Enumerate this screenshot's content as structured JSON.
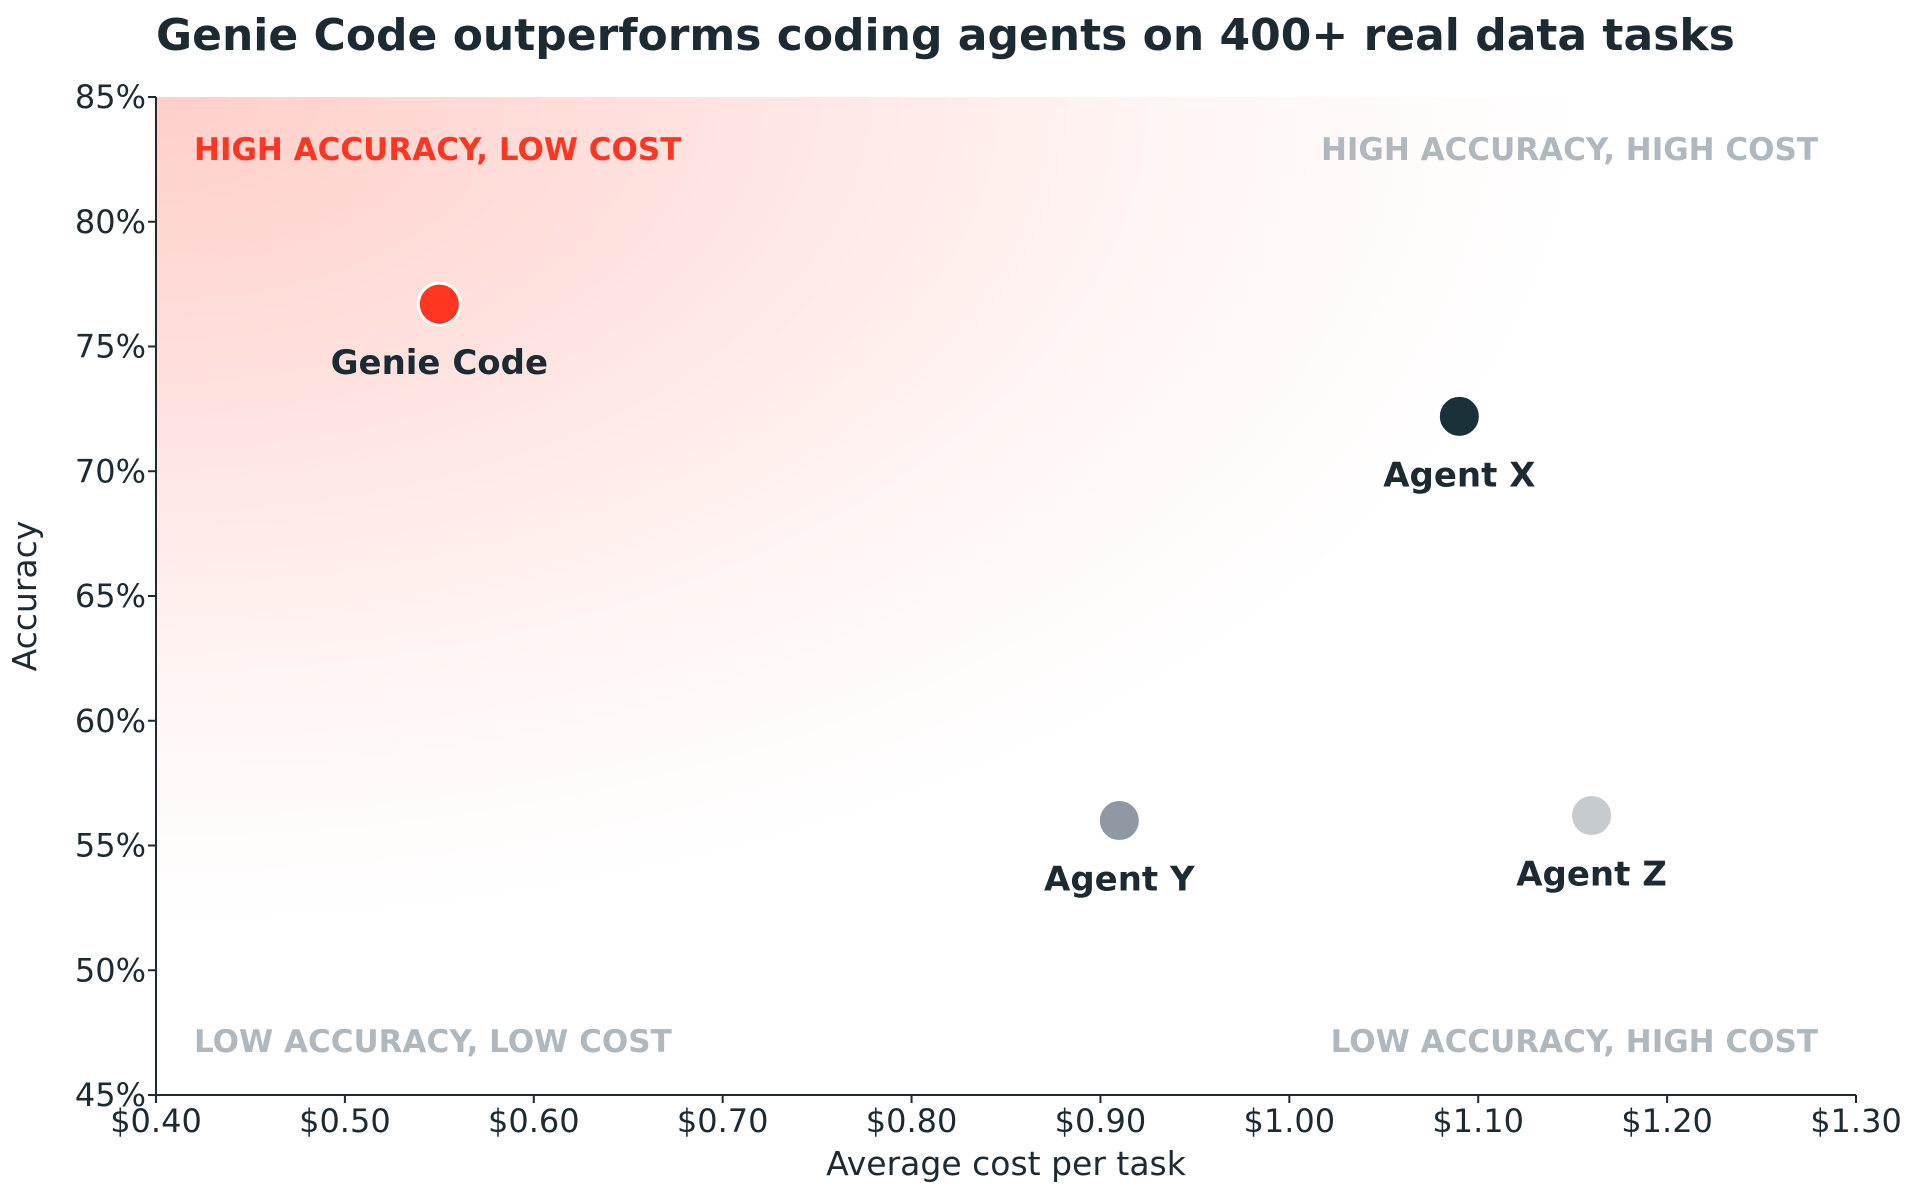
{
  "chart_data": {
    "type": "scatter",
    "title": "Genie Code outperforms coding agents on 400+ real data tasks",
    "xlabel": "Average cost per task",
    "ylabel": "Accuracy",
    "xlim": [
      0.4,
      1.3
    ],
    "ylim": [
      45,
      85
    ],
    "x_ticks": [
      0.4,
      0.5,
      0.6,
      0.7,
      0.8,
      0.9,
      1.0,
      1.1,
      1.2,
      1.3
    ],
    "x_tick_labels": [
      "$0.40",
      "$0.50",
      "$0.60",
      "$0.70",
      "$0.80",
      "$0.90",
      "$1.00",
      "$1.10",
      "$1.20",
      "$1.30"
    ],
    "y_ticks": [
      45,
      50,
      55,
      60,
      65,
      70,
      75,
      80,
      85
    ],
    "y_tick_labels": [
      "45%",
      "50%",
      "55%",
      "60%",
      "65%",
      "70%",
      "75%",
      "80%",
      "85%"
    ],
    "grid": false,
    "highlight_region": "top-left",
    "highlight_color": "#ff3621",
    "points": [
      {
        "label": "Genie Code",
        "x": 0.55,
        "y": 76.7,
        "color": "#ff3621"
      },
      {
        "label": "Agent X",
        "x": 1.09,
        "y": 72.2,
        "color": "#1b3139"
      },
      {
        "label": "Agent Y",
        "x": 0.91,
        "y": 56.0,
        "color": "#8e99a3"
      },
      {
        "label": "Agent Z",
        "x": 1.16,
        "y": 56.2,
        "color": "#c6cbd0"
      }
    ],
    "quadrant_labels": [
      {
        "text": "HIGH ACCURACY, LOW COST",
        "position": "top-left",
        "color": "#ff3621"
      },
      {
        "text": "HIGH ACCURACY, HIGH COST",
        "position": "top-right",
        "color": "#b0b8bf"
      },
      {
        "text": "LOW ACCURACY, LOW COST",
        "position": "bottom-left",
        "color": "#b0b8bf"
      },
      {
        "text": "LOW ACCURACY, HIGH COST",
        "position": "bottom-right",
        "color": "#b0b8bf"
      }
    ]
  }
}
